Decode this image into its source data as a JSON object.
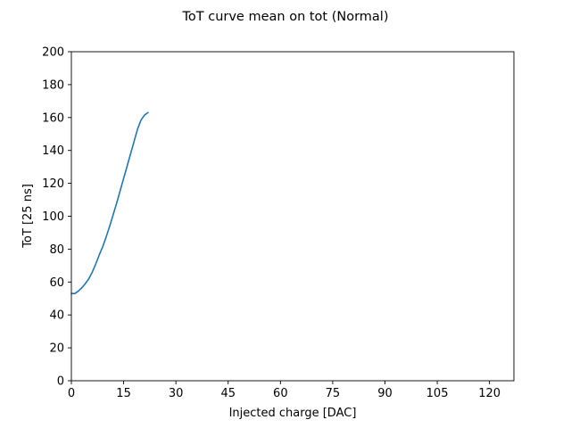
{
  "chart_data": {
    "type": "line",
    "title": "ToT curve mean on tot (Normal)",
    "xlabel": "Injected charge [DAC]",
    "ylabel": "ToT [25 ns]",
    "xlim": [
      0,
      127
    ],
    "ylim": [
      0,
      200
    ],
    "xticks": [
      "0",
      "15",
      "30",
      "45",
      "60",
      "75",
      "90",
      "105",
      "120"
    ],
    "yticks": [
      "0",
      "20",
      "40",
      "60",
      "80",
      "100",
      "120",
      "140",
      "160",
      "180",
      "200"
    ],
    "grid": false,
    "series": [
      {
        "color": "#1f77b4",
        "x": [
          0,
          1,
          2,
          3,
          4,
          5,
          6,
          7,
          8,
          9,
          10,
          11,
          12,
          13,
          14,
          15,
          16,
          17,
          18,
          19,
          20,
          21,
          22
        ],
        "y": [
          53,
          53,
          54.5,
          56.5,
          59,
          62,
          66,
          71,
          76.5,
          81.5,
          87.5,
          94,
          101,
          108,
          115.5,
          123,
          130.5,
          138,
          145.5,
          153,
          158.5,
          161.5,
          163
        ]
      }
    ]
  }
}
